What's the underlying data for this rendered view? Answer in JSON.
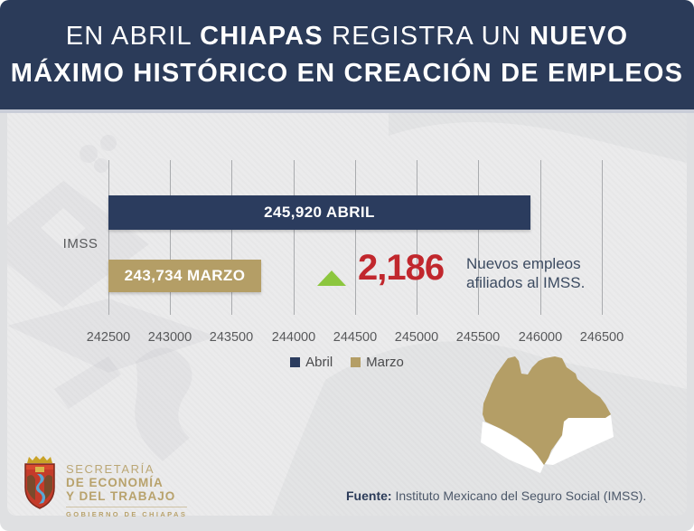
{
  "title": {
    "line1": [
      {
        "text": "EN ABRIL ",
        "bold": false
      },
      {
        "text": "CHIAPAS",
        "bold": true
      },
      {
        "text": " REGISTRA UN ",
        "bold": false
      },
      {
        "text": "NUEVO",
        "bold": true
      }
    ],
    "line2": "MÁXIMO HISTÓRICO EN CREACIÓN DE EMPLEOS"
  },
  "chart_data": {
    "type": "bar",
    "orientation": "horizontal",
    "axis_group_label": "IMSS",
    "categories": [
      "Abril",
      "Marzo"
    ],
    "values": [
      245920,
      243734
    ],
    "bar_labels": [
      "245,920 ABRIL",
      "243,734 MARZO"
    ],
    "series_colors": {
      "abril": "#2b3c5e",
      "marzo": "#b49e66"
    },
    "xlim": [
      242500,
      246500
    ],
    "x_ticks": [
      "242500",
      "243000",
      "243500",
      "244000",
      "244500",
      "245000",
      "245500",
      "246000",
      "246500"
    ],
    "grid": true,
    "legend": {
      "position": "bottom",
      "items": [
        {
          "label": "Abril",
          "color": "#2b3c5e"
        },
        {
          "label": "Marzo",
          "color": "#b49e66"
        }
      ]
    },
    "annotation": {
      "delta_value": "2,186",
      "delta_color": "#c1272d",
      "arrow_color": "#8cc63e",
      "caption_line1": "Nuevos empleos",
      "caption_line2": "afiliados al IMSS."
    }
  },
  "footer": {
    "logo": {
      "line1": "SECRETARÍA",
      "line2": "DE ECONOMÍA",
      "line3": "Y DEL TRABAJO",
      "subline": "GOBIERNO DE CHIAPAS"
    },
    "source_label": "Fuente:",
    "source_text": " Instituto Mexicano del Seguro Social (IMSS)."
  },
  "theme": {
    "header_bg": "#2b3b59",
    "body_bg": "#ebebec",
    "tick_color": "#58595b"
  }
}
